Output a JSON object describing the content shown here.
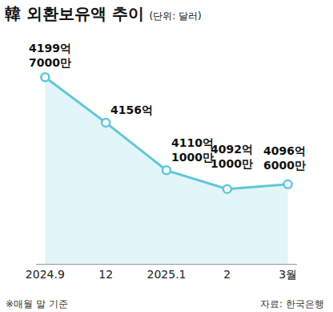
{
  "chart_data": {
    "type": "line",
    "title": "韓 외환보유액 추이",
    "subtitle": "(단위: 달러)",
    "categories": [
      "2024.9",
      "12",
      "2025.1",
      "2",
      "3월"
    ],
    "values": [
      4199.7,
      4156,
      4110.1,
      4092.1,
      4096.6
    ],
    "value_labels": [
      "4199억 7000만",
      "4156억",
      "4110억 1000만",
      "4092억 1000만",
      "4096억 6000만"
    ],
    "data_labels": true,
    "color": "#5ec8d8",
    "marker": "circle",
    "ylim": [
      4020,
      4220
    ],
    "grid": false,
    "tick_labels": "x",
    "notes": [
      "※매월 말 기준",
      "자료: 한국은행"
    ]
  }
}
